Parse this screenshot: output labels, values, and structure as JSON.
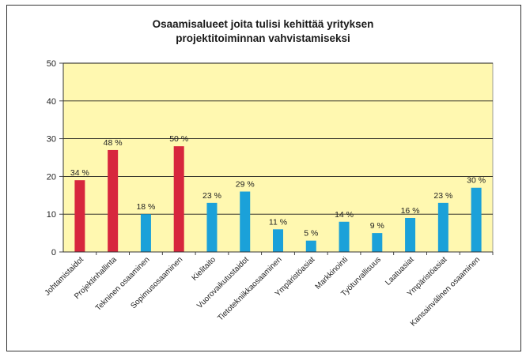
{
  "chart_data": {
    "type": "bar",
    "title": "Osaamisalueet joita tulisi kehittää yrityksen projektitoiminnan vahvistamiseksi",
    "title_lines": [
      "Osaamisalueet joita tulisi kehittää yrityksen",
      "projektitoiminnan vahvistamiseksi"
    ],
    "categories": [
      "Johtamistaidot",
      "Projektinhallinta",
      "Tekninen osaaminen",
      "Sopimusosaaminen",
      "Kielitaito",
      "Vuorovaikutustaidot",
      "Tietotekniikkaosaaminen",
      "Ympäristöasiat",
      "Markkinointi",
      "Työturvallisuus",
      "Laatuasiat",
      "Ympäristöasiat",
      "Kansainvälinen osaaminen"
    ],
    "values": [
      19,
      27,
      10,
      28,
      13,
      16,
      6,
      3,
      8,
      5,
      9,
      13,
      17
    ],
    "data_labels": [
      "34 %",
      "48 %",
      "18 %",
      "50 %",
      "23 %",
      "29 %",
      "11 %",
      "5 %",
      "14 %",
      "9 %",
      "16 %",
      "23 %",
      "30 %"
    ],
    "bar_colors": [
      "#d7263d",
      "#d7263d",
      "#1ba1d9",
      "#d7263d",
      "#1ba1d9",
      "#1ba1d9",
      "#1ba1d9",
      "#1ba1d9",
      "#1ba1d9",
      "#1ba1d9",
      "#1ba1d9",
      "#1ba1d9",
      "#1ba1d9"
    ],
    "yticks": [
      "0",
      "10",
      "20",
      "30",
      "40",
      "50"
    ],
    "ylim": [
      0,
      50
    ],
    "grid": true,
    "plot_background": "#fff8b0",
    "xlabel": "",
    "ylabel": ""
  }
}
